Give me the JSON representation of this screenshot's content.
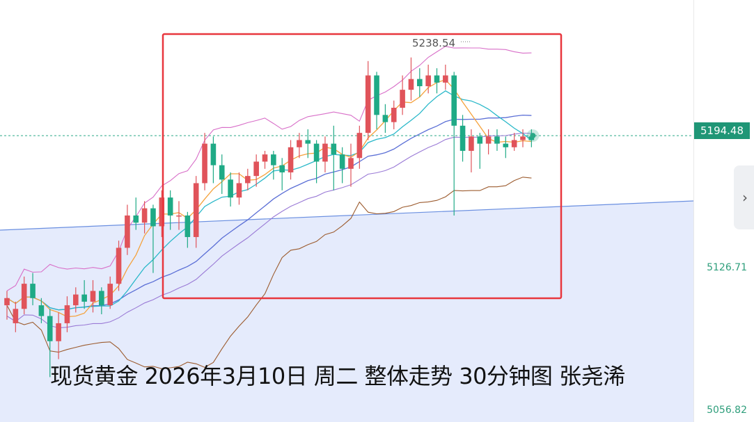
{
  "caption": "现货黄金 2026年3月10日 周二 整体走势 30分钟图 张尧浠",
  "price_axis": {
    "current_price": "5194.48",
    "labels": [
      "5126.71",
      "5056.82"
    ]
  },
  "peak_label": "5238.54",
  "nav": {
    "next_icon": "›"
  },
  "colors": {
    "up": "#e0535a",
    "down": "#1faa86",
    "ma_fast": "#f5a23c",
    "ma_mid": "#29b8c9",
    "ma_slow": "#5b6fd6",
    "boll_upper": "#d86ec8",
    "boll_lower": "#9c5b2e",
    "ma_long": "#9a7ad6",
    "highlight_box": "#e8363d",
    "trend_fill": "#e1e7fb",
    "trend_line": "#6a8fe0"
  },
  "chart_data": {
    "type": "candlestick",
    "timeframe": "30分钟",
    "y_range": [
      5035,
      5270
    ],
    "current_price": 5194.48,
    "candles": [
      [
        5100,
        5104,
        5092,
        5108
      ],
      [
        5090,
        5098,
        5085,
        5102
      ],
      [
        5098,
        5112,
        5095,
        5116
      ],
      [
        5112,
        5104,
        5100,
        5118
      ],
      [
        5100,
        5094,
        5090,
        5104
      ],
      [
        5094,
        5080,
        5060,
        5098
      ],
      [
        5080,
        5090,
        5070,
        5096
      ],
      [
        5090,
        5100,
        5085,
        5105
      ],
      [
        5100,
        5106,
        5096,
        5110
      ],
      [
        5106,
        5102,
        5098,
        5114
      ],
      [
        5102,
        5108,
        5096,
        5114
      ],
      [
        5108,
        5100,
        5095,
        5110
      ],
      [
        5100,
        5112,
        5098,
        5116
      ],
      [
        5112,
        5132,
        5108,
        5136
      ],
      [
        5132,
        5150,
        5128,
        5156
      ],
      [
        5150,
        5146,
        5142,
        5160
      ],
      [
        5146,
        5154,
        5140,
        5158
      ],
      [
        5154,
        5144,
        5118,
        5156
      ],
      [
        5144,
        5160,
        5138,
        5164
      ],
      [
        5160,
        5150,
        5142,
        5164
      ],
      [
        5150,
        5150,
        5142,
        5158
      ],
      [
        5150,
        5138,
        5132,
        5152
      ],
      [
        5138,
        5168,
        5132,
        5172
      ],
      [
        5168,
        5190,
        5164,
        5196
      ],
      [
        5190,
        5178,
        5168,
        5194
      ],
      [
        5178,
        5170,
        5162,
        5184
      ],
      [
        5170,
        5160,
        5155,
        5174
      ],
      [
        5160,
        5168,
        5156,
        5174
      ],
      [
        5168,
        5172,
        5164,
        5176
      ],
      [
        5172,
        5180,
        5166,
        5184
      ],
      [
        5180,
        5184,
        5176,
        5186
      ],
      [
        5184,
        5178,
        5170,
        5186
      ],
      [
        5178,
        5174,
        5164,
        5182
      ],
      [
        5174,
        5188,
        5170,
        5192
      ],
      [
        5188,
        5192,
        5182,
        5196
      ],
      [
        5192,
        5190,
        5182,
        5198
      ],
      [
        5190,
        5180,
        5168,
        5192
      ],
      [
        5180,
        5190,
        5174,
        5194
      ],
      [
        5190,
        5184,
        5164,
        5200
      ],
      [
        5184,
        5176,
        5168,
        5188
      ],
      [
        5176,
        5182,
        5166,
        5190
      ],
      [
        5182,
        5196,
        5176,
        5200
      ],
      [
        5196,
        5228,
        5192,
        5236
      ],
      [
        5228,
        5206,
        5198,
        5230
      ],
      [
        5206,
        5202,
        5196,
        5212
      ],
      [
        5202,
        5210,
        5198,
        5214
      ],
      [
        5210,
        5220,
        5206,
        5228
      ],
      [
        5220,
        5226,
        5214,
        5238
      ],
      [
        5226,
        5222,
        5216,
        5232
      ],
      [
        5222,
        5228,
        5218,
        5234
      ],
      [
        5228,
        5224,
        5218,
        5232
      ],
      [
        5224,
        5228,
        5220,
        5234
      ],
      [
        5228,
        5200,
        5150,
        5230
      ],
      [
        5200,
        5186,
        5180,
        5206
      ],
      [
        5186,
        5194,
        5174,
        5198
      ],
      [
        5194,
        5190,
        5176,
        5196
      ],
      [
        5190,
        5194,
        5184,
        5198
      ],
      [
        5194,
        5190,
        5186,
        5198
      ],
      [
        5190,
        5188,
        5182,
        5194
      ],
      [
        5188,
        5192,
        5186,
        5196
      ],
      [
        5192,
        5194,
        5188,
        5198
      ],
      [
        5194,
        5192,
        5188,
        5198
      ]
    ]
  }
}
